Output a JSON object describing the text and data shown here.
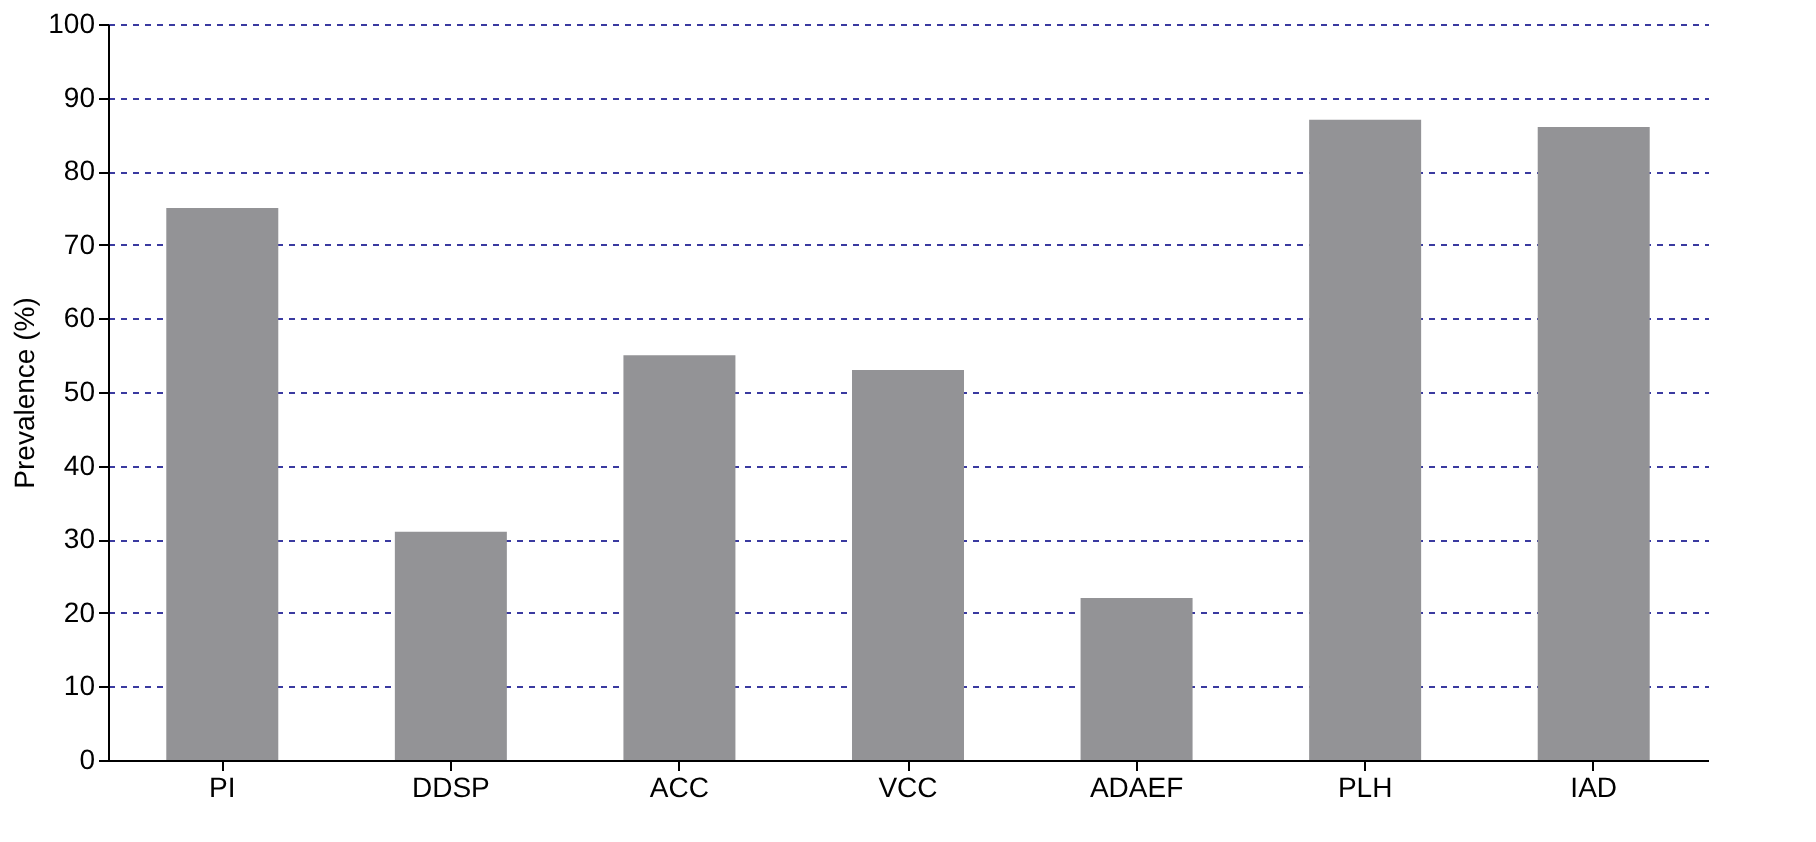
{
  "chart_data": {
    "type": "bar",
    "ylabel": "Prevalence (%)",
    "categories": [
      "PI",
      "DDSP",
      "ACC",
      "VCC",
      "ADAEF",
      "PLH",
      "IAD"
    ],
    "values": [
      75,
      31,
      55,
      53,
      22,
      87,
      86
    ],
    "color": "#939396",
    "ylim": [
      0,
      100
    ],
    "yticks": [
      0,
      10,
      20,
      30,
      40,
      50,
      60,
      70,
      80,
      90,
      100
    ],
    "grid": "y"
  }
}
